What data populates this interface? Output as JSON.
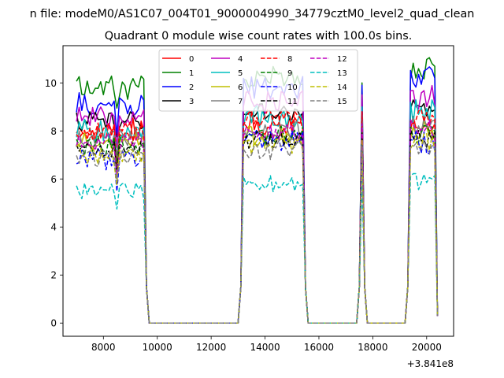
{
  "chart_data": {
    "type": "line",
    "suptitle": "n file: modeM0/AS1C07_004T01_9000004990_34779cztM0_level2_quad_clean",
    "title": "Quadrant 0 module wise count rates with 100.0s bins.",
    "xlabel": "",
    "ylabel": "",
    "x_offset_label": "+3.841e8",
    "xlim": [
      6500,
      21000
    ],
    "ylim": [
      -0.55,
      11.55
    ],
    "xticks": [
      8000,
      10000,
      12000,
      14000,
      16000,
      18000,
      20000
    ],
    "xtick_labels": [
      "8000",
      "10000",
      "12000",
      "14000",
      "16000",
      "18000",
      "20000"
    ],
    "yticks": [
      0,
      2,
      4,
      6,
      8,
      10
    ],
    "ytick_labels": [
      "0",
      "2",
      "4",
      "6",
      "8",
      "10"
    ],
    "legend_position": "upper center",
    "legend_columns": 4,
    "grid": false,
    "series": [
      {
        "name": "0",
        "color": "#ff0000",
        "dash": "solid",
        "level": 8.1,
        "spread": 0.5,
        "peaks": [
          8.3,
          9.0,
          8.4
        ]
      },
      {
        "name": "1",
        "color": "#008000",
        "dash": "solid",
        "level": 9.8,
        "spread": 0.5,
        "peaks": [
          10.2,
          10.0,
          10.6
        ]
      },
      {
        "name": "2",
        "color": "#0000ff",
        "dash": "solid",
        "level": 9.1,
        "spread": 0.5,
        "peaks": [
          9.8,
          9.9,
          10.3
        ]
      },
      {
        "name": "3",
        "color": "#000000",
        "dash": "solid",
        "level": 8.4,
        "spread": 0.4,
        "peaks": [
          8.8,
          9.2,
          9.0
        ]
      },
      {
        "name": "4",
        "color": "#bf00bf",
        "dash": "solid",
        "level": 8.6,
        "spread": 0.5,
        "peaks": [
          9.2,
          9.5,
          9.4
        ]
      },
      {
        "name": "5",
        "color": "#00bfbf",
        "dash": "solid",
        "level": 8.0,
        "spread": 0.5,
        "peaks": [
          8.6,
          9.0,
          8.8
        ]
      },
      {
        "name": "6",
        "color": "#bfbf00",
        "dash": "solid",
        "level": 7.6,
        "spread": 0.4,
        "peaks": [
          7.8,
          8.2,
          8.0
        ]
      },
      {
        "name": "7",
        "color": "#808080",
        "dash": "solid",
        "level": 7.7,
        "spread": 0.4,
        "peaks": [
          8.0,
          8.4,
          8.2
        ]
      },
      {
        "name": "8",
        "color": "#ff0000",
        "dash": "dashed",
        "level": 8.0,
        "spread": 0.5,
        "peaks": [
          8.4,
          8.8,
          8.6
        ]
      },
      {
        "name": "9",
        "color": "#008000",
        "dash": "dashed",
        "level": 7.4,
        "spread": 0.4,
        "peaks": [
          7.8,
          8.0,
          7.9
        ]
      },
      {
        "name": "10",
        "color": "#0000ff",
        "dash": "dashed",
        "level": 6.8,
        "spread": 0.5,
        "peaks": [
          7.6,
          7.8,
          7.5
        ]
      },
      {
        "name": "11",
        "color": "#000000",
        "dash": "dashed",
        "level": 7.2,
        "spread": 0.4,
        "peaks": [
          7.6,
          7.9,
          7.7
        ]
      },
      {
        "name": "12",
        "color": "#bf00bf",
        "dash": "dashed",
        "level": 7.5,
        "spread": 0.4,
        "peaks": [
          7.9,
          8.3,
          8.1
        ]
      },
      {
        "name": "13",
        "color": "#00bfbf",
        "dash": "dashed",
        "level": 5.5,
        "spread": 0.35,
        "peaks": [
          5.8,
          6.0,
          5.9
        ]
      },
      {
        "name": "14",
        "color": "#bfbf00",
        "dash": "dashed",
        "level": 7.0,
        "spread": 0.4,
        "peaks": [
          7.4,
          7.6,
          7.5
        ]
      },
      {
        "name": "15",
        "color": "#808080",
        "dash": "dashed",
        "level": 6.9,
        "spread": 0.4,
        "peaks": [
          7.2,
          7.4,
          7.3
        ]
      }
    ],
    "time_profile": {
      "x_start": 7000,
      "x_end": 20400,
      "bin_width": 100,
      "active_segments": [
        [
          7000,
          9500
        ],
        [
          13200,
          15400
        ],
        [
          17600,
          17600
        ],
        [
          19400,
          20400
        ]
      ],
      "transition_points": [
        [
          9600,
          1.5
        ],
        [
          13100,
          1.5
        ],
        [
          15500,
          1.5
        ],
        [
          17500,
          1.5
        ],
        [
          17700,
          1.5
        ],
        [
          19300,
          1.5
        ]
      ],
      "baseline_value": 0.0,
      "dips": [
        [
          8500,
          -2.4
        ]
      ]
    }
  }
}
